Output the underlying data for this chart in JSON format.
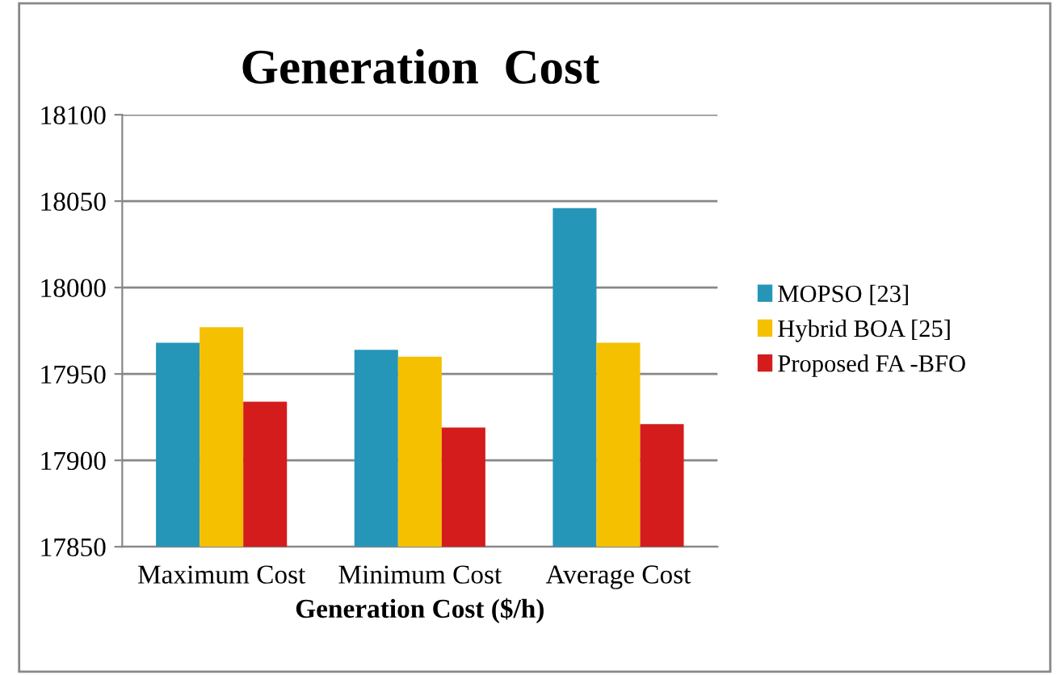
{
  "chart_data": {
    "type": "bar",
    "title": "Generation  Cost",
    "xlabel": "Generation Cost ($/h)",
    "categories": [
      "Maximum Cost",
      "Minimum Cost",
      "Average Cost"
    ],
    "series": [
      {
        "name": "MOPSO [23]",
        "color": "#2596b8",
        "values": [
          17968,
          17964,
          18046
        ]
      },
      {
        "name": "Hybrid BOA [25]",
        "color": "#f5c000",
        "values": [
          17977,
          17960,
          17968
        ]
      },
      {
        "name": "Proposed FA -BFO",
        "color": "#d41c1c",
        "values": [
          17934,
          17919,
          17921
        ]
      }
    ],
    "ylim": [
      17850,
      18100
    ],
    "yticks": [
      17850,
      17900,
      17950,
      18000,
      18050,
      18100
    ],
    "grid": "y",
    "legend": "right"
  }
}
